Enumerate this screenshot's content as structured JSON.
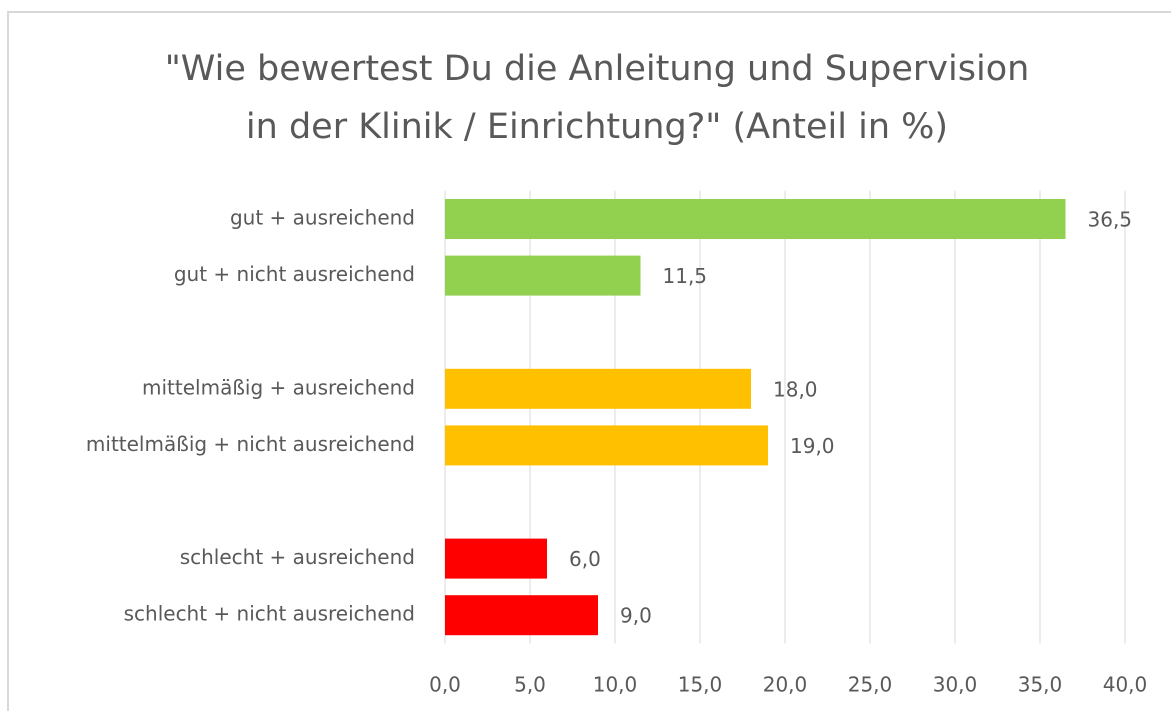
{
  "chart_data": {
    "type": "hbar",
    "title": [
      "\"Wie bewertest Du die Anleitung und Supervision",
      "in der Klinik / Einrichtung?\" (Anteil in %)"
    ],
    "categories": [
      "gut + ausreichend",
      "gut + nicht ausreichend",
      null,
      "mittelmäßig + ausreichend",
      "mittelmäßig + nicht ausreichend",
      null,
      "schlecht + ausreichend",
      "schlecht + nicht ausreichend"
    ],
    "values": [
      36.5,
      11.5,
      null,
      18.0,
      19.0,
      null,
      6.0,
      9.0
    ],
    "value_labels": [
      "36,5",
      "11,5",
      null,
      "18,0",
      "19,0",
      null,
      "6,0",
      "9,0"
    ],
    "colors": [
      "#92d050",
      "#92d050",
      null,
      "#ffc000",
      "#ffc000",
      null,
      "#ff0000",
      "#ff0000"
    ],
    "xlim": [
      0,
      40
    ],
    "xticks": [
      {
        "value": 0,
        "label": "0,0"
      },
      {
        "value": 5,
        "label": "5,0"
      },
      {
        "value": 10,
        "label": "10,0"
      },
      {
        "value": 15,
        "label": "15,0"
      },
      {
        "value": 20,
        "label": "20,0"
      },
      {
        "value": 25,
        "label": "25,0"
      },
      {
        "value": 30,
        "label": "30,0"
      },
      {
        "value": 35,
        "label": "35,0"
      },
      {
        "value": 40,
        "label": "40,0"
      }
    ],
    "grid": true
  }
}
